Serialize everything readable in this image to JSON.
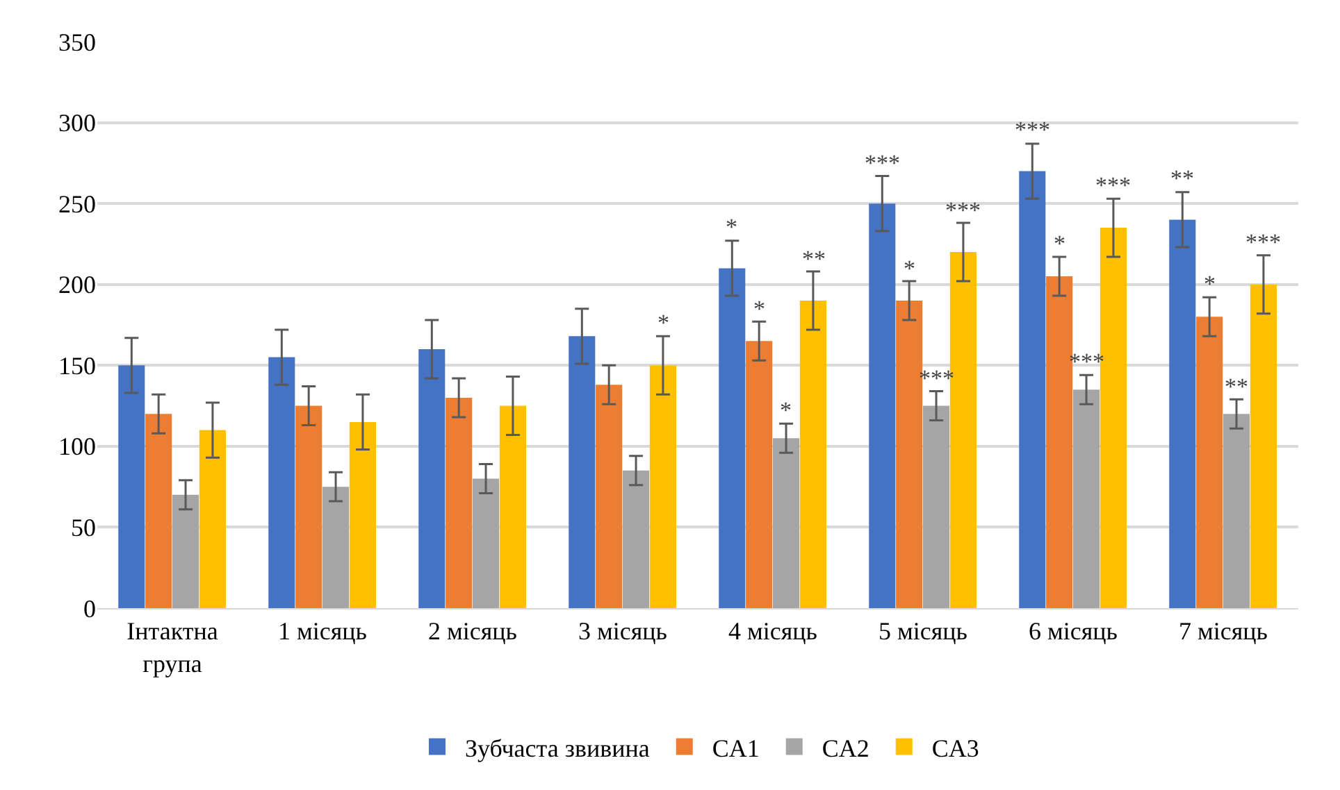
{
  "chart_data": {
    "type": "bar",
    "categories": [
      "Інтактна група",
      "1 місяць",
      "2 місяць",
      "3 місяць",
      "4 місяць",
      "5 місяць",
      "6 місяць",
      "7 місяць"
    ],
    "series": [
      {
        "name": "Зубчаста звивина",
        "color": "#4472c4",
        "values": [
          150,
          155,
          160,
          168,
          210,
          250,
          270,
          240
        ],
        "errors": [
          17,
          17,
          18,
          17,
          17,
          17,
          17,
          17
        ],
        "value_labels": [
          null,
          null,
          null,
          null,
          "*",
          "***",
          "***",
          "**"
        ]
      },
      {
        "name": "CA1",
        "color": "#ed7d31",
        "values": [
          120,
          125,
          130,
          138,
          165,
          190,
          205,
          180
        ],
        "errors": [
          12,
          12,
          12,
          12,
          12,
          12,
          12,
          12
        ],
        "value_labels": [
          null,
          null,
          null,
          null,
          "*",
          "*",
          "*",
          "*"
        ]
      },
      {
        "name": "CA2",
        "color": "#a5a5a5",
        "values": [
          70,
          75,
          80,
          85,
          105,
          125,
          135,
          120
        ],
        "errors": [
          9,
          9,
          9,
          9,
          9,
          9,
          9,
          9
        ],
        "value_labels": [
          null,
          null,
          null,
          null,
          "*",
          "***",
          "***",
          "**"
        ]
      },
      {
        "name": "CA3",
        "color": "#ffc000",
        "values": [
          110,
          115,
          125,
          150,
          190,
          220,
          235,
          200
        ],
        "errors": [
          17,
          17,
          18,
          18,
          18,
          18,
          18,
          18
        ],
        "value_labels": [
          null,
          null,
          null,
          "*",
          "**",
          "***",
          "***",
          "***"
        ]
      }
    ],
    "ylim": [
      0,
      350
    ],
    "yticks": [
      0,
      50,
      100,
      150,
      200,
      250,
      300,
      350
    ],
    "grid": "y",
    "legend": "bottom"
  }
}
